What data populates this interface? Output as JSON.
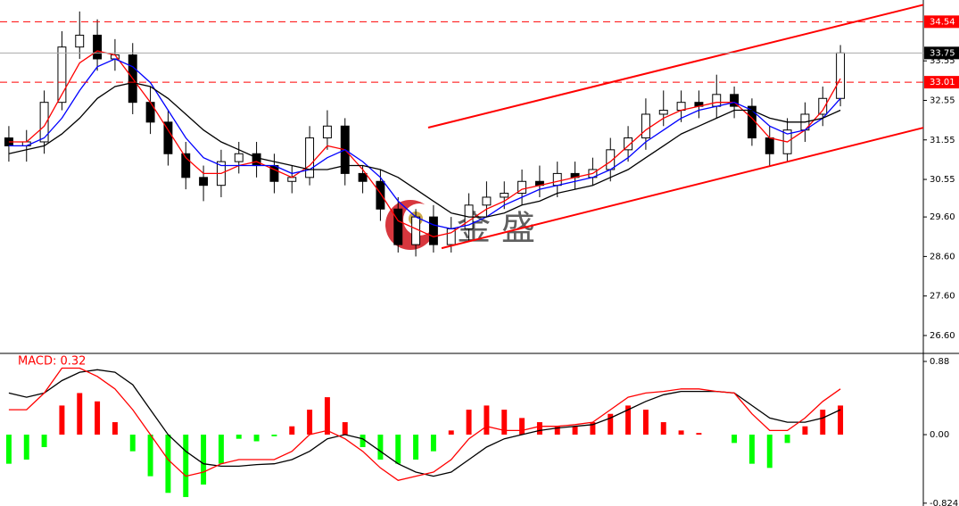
{
  "chart_data": [
    {
      "type": "candlestick",
      "xlim": [
        -0.5,
        47.5
      ],
      "ylim": [
        26.17,
        35.09
      ],
      "yticks": [
        33.55,
        32.55,
        31.55,
        30.55,
        {
          "value": 29.6,
          "label": "29.60"
        },
        {
          "value": 28.6,
          "label": "28.60"
        },
        {
          "value": 27.6,
          "label": "27.60"
        },
        {
          "value": 26.6,
          "label": "26.60"
        }
      ],
      "up_color": "#ffffff",
      "down_color": "#000000",
      "open": [
        31.6,
        31.4,
        31.5,
        32.5,
        33.9,
        34.2,
        33.6,
        33.7,
        32.5,
        32.0,
        31.2,
        30.6,
        30.4,
        31.0,
        31.2,
        30.9,
        30.5,
        30.6,
        31.6,
        31.9,
        30.7,
        30.5,
        29.8,
        28.9,
        29.6,
        28.9,
        29.3,
        29.9,
        30.1,
        30.2,
        30.5,
        30.4,
        30.7,
        30.6,
        30.8,
        31.3,
        31.6,
        32.2,
        32.3,
        32.5,
        32.4,
        32.7,
        32.4,
        31.6,
        31.2,
        31.8,
        32.2,
        32.6
      ],
      "high": [
        31.9,
        31.8,
        32.8,
        34.3,
        34.8,
        34.6,
        34.1,
        34.0,
        32.9,
        32.3,
        31.5,
        30.9,
        31.3,
        31.5,
        31.5,
        31.2,
        30.9,
        31.9,
        32.3,
        32.1,
        30.9,
        30.8,
        30.1,
        29.8,
        29.9,
        29.6,
        30.2,
        30.5,
        30.5,
        30.8,
        30.9,
        31.0,
        31.0,
        31.1,
        31.6,
        31.9,
        32.6,
        32.8,
        32.8,
        32.8,
        33.2,
        32.9,
        32.6,
        31.9,
        32.1,
        32.5,
        32.9,
        33.95
      ],
      "low": [
        31.0,
        31.0,
        31.2,
        32.3,
        33.6,
        33.3,
        33.3,
        32.2,
        31.7,
        30.9,
        30.3,
        30.0,
        30.1,
        30.7,
        30.6,
        30.2,
        30.2,
        30.4,
        31.3,
        30.4,
        30.2,
        29.5,
        28.7,
        28.6,
        28.7,
        28.7,
        29.0,
        29.6,
        29.8,
        29.9,
        30.1,
        30.1,
        30.3,
        30.4,
        30.5,
        31.0,
        31.3,
        31.9,
        32.0,
        32.1,
        32.1,
        32.1,
        31.4,
        30.9,
        31.0,
        31.5,
        31.9,
        32.4
      ],
      "close": [
        31.4,
        31.5,
        32.5,
        33.9,
        34.2,
        33.6,
        33.7,
        32.5,
        32.0,
        31.2,
        30.6,
        30.4,
        31.0,
        31.2,
        30.9,
        30.5,
        30.6,
        31.6,
        31.9,
        30.7,
        30.5,
        29.8,
        28.9,
        29.6,
        28.9,
        29.3,
        29.9,
        30.1,
        30.2,
        30.5,
        30.4,
        30.7,
        30.6,
        30.8,
        31.3,
        31.6,
        32.2,
        32.3,
        32.5,
        32.4,
        32.7,
        32.4,
        31.6,
        31.2,
        31.8,
        32.2,
        32.6,
        33.75
      ],
      "series": [
        {
          "color": "#ff0000",
          "values": [
            31.5,
            31.5,
            31.9,
            32.7,
            33.5,
            33.8,
            33.7,
            33.1,
            32.5,
            31.8,
            31.1,
            30.7,
            30.7,
            30.9,
            31.0,
            30.8,
            30.6,
            30.9,
            31.4,
            31.3,
            30.8,
            30.2,
            29.5,
            29.3,
            29.1,
            29.2,
            29.5,
            29.8,
            30.0,
            30.3,
            30.4,
            30.5,
            30.6,
            30.7,
            31.0,
            31.4,
            31.8,
            32.1,
            32.3,
            32.4,
            32.5,
            32.5,
            32.1,
            31.6,
            31.5,
            31.8,
            32.3,
            33.1
          ]
        },
        {
          "color": "#0000ff",
          "values": [
            31.4,
            31.4,
            31.6,
            32.1,
            32.8,
            33.4,
            33.6,
            33.4,
            33.0,
            32.3,
            31.6,
            31.1,
            30.9,
            30.9,
            30.9,
            30.9,
            30.7,
            30.8,
            31.1,
            31.3,
            31.0,
            30.6,
            30.0,
            29.6,
            29.4,
            29.3,
            29.4,
            29.6,
            29.9,
            30.1,
            30.3,
            30.4,
            30.5,
            30.6,
            30.8,
            31.1,
            31.5,
            31.8,
            32.1,
            32.3,
            32.4,
            32.5,
            32.3,
            31.9,
            31.7,
            31.8,
            32.1,
            32.6
          ]
        },
        {
          "color": "#000000",
          "values": [
            31.2,
            31.3,
            31.4,
            31.7,
            32.1,
            32.6,
            32.9,
            33.0,
            32.9,
            32.6,
            32.2,
            31.8,
            31.5,
            31.3,
            31.1,
            31.0,
            30.9,
            30.8,
            30.8,
            30.9,
            30.9,
            30.8,
            30.6,
            30.3,
            30.0,
            29.7,
            29.6,
            29.6,
            29.7,
            29.9,
            30.0,
            30.2,
            30.3,
            30.4,
            30.6,
            30.8,
            31.1,
            31.4,
            31.7,
            31.9,
            32.1,
            32.3,
            32.3,
            32.1,
            32.0,
            32.0,
            32.1,
            32.3
          ]
        }
      ],
      "trendlines": [
        {
          "color": "#ff0000",
          "x": [
            23.7,
            51.7
          ],
          "y": [
            31.86,
            34.97
          ]
        },
        {
          "color": "#ff0000",
          "x": [
            24.46,
            51.7
          ],
          "y": [
            28.81,
            31.86
          ]
        }
      ],
      "levels": [
        {
          "value": 34.54,
          "color": "#ff0000"
        },
        {
          "value": 33.01,
          "color": "#ff0000"
        }
      ],
      "price_line": {
        "value": 33.75,
        "color": "#000000"
      },
      "watermark": "金 盛"
    },
    {
      "type": "macd",
      "label": "MACD: 0.32",
      "xlim": [
        -0.5,
        47.5
      ],
      "ylim": [
        -0.858,
        0.966
      ],
      "yticks": [
        0.88,
        {
          "value": 0,
          "label": "0.00"
        },
        -0.824
      ],
      "positive_color": "#ff0000",
      "negative_color": "#00ff00",
      "histogram": [
        -0.35,
        -0.3,
        -0.15,
        0.35,
        0.5,
        0.4,
        0.15,
        -0.2,
        -0.5,
        -0.7,
        -0.75,
        -0.6,
        -0.35,
        -0.05,
        -0.08,
        -0.02,
        0.1,
        0.3,
        0.45,
        0.15,
        -0.15,
        -0.3,
        -0.35,
        -0.3,
        -0.2,
        0.05,
        0.3,
        0.35,
        0.3,
        0.2,
        0.15,
        0.1,
        0.1,
        0.15,
        0.25,
        0.35,
        0.3,
        0.15,
        0.05,
        0.02,
        0.0,
        -0.1,
        -0.35,
        -0.4,
        -0.1,
        0.1,
        0.3,
        0.35
      ],
      "series": [
        {
          "color": "#000000",
          "values": [
            0.5,
            0.45,
            0.5,
            0.65,
            0.75,
            0.78,
            0.75,
            0.6,
            0.3,
            0.0,
            -0.2,
            -0.35,
            -0.38,
            -0.38,
            -0.36,
            -0.35,
            -0.3,
            -0.2,
            -0.05,
            0.0,
            -0.05,
            -0.2,
            -0.35,
            -0.45,
            -0.5,
            -0.45,
            -0.3,
            -0.15,
            -0.05,
            0.0,
            0.05,
            0.08,
            0.1,
            0.12,
            0.2,
            0.3,
            0.4,
            0.48,
            0.52,
            0.52,
            0.52,
            0.5,
            0.35,
            0.2,
            0.15,
            0.15,
            0.2,
            0.3
          ]
        },
        {
          "color": "#ff0000",
          "values": [
            0.3,
            0.3,
            0.5,
            0.8,
            0.8,
            0.7,
            0.55,
            0.3,
            0.0,
            -0.3,
            -0.5,
            -0.45,
            -0.35,
            -0.3,
            -0.3,
            -0.3,
            -0.2,
            0.0,
            0.05,
            -0.05,
            -0.2,
            -0.4,
            -0.55,
            -0.5,
            -0.45,
            -0.3,
            -0.05,
            0.1,
            0.05,
            0.05,
            0.1,
            0.1,
            0.12,
            0.15,
            0.3,
            0.45,
            0.5,
            0.52,
            0.55,
            0.55,
            0.52,
            0.5,
            0.25,
            0.05,
            0.05,
            0.2,
            0.4,
            0.55
          ]
        }
      ]
    }
  ]
}
